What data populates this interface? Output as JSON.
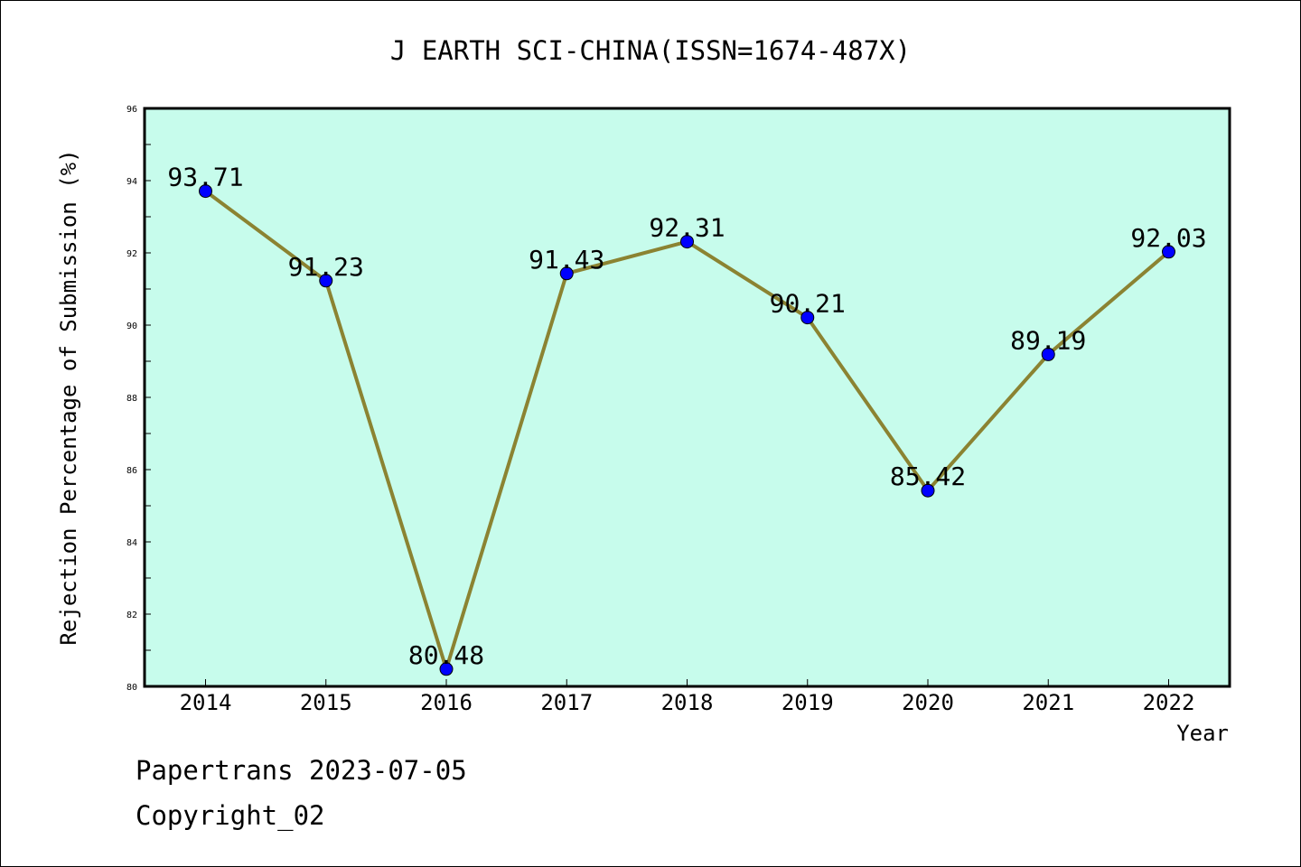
{
  "chart_data": {
    "type": "line",
    "title": "J EARTH SCI-CHINA(ISSN=1674-487X)",
    "xlabel": "Year",
    "ylabel": "Rejection Percentage of Submission (%)",
    "categories": [
      "2014",
      "2015",
      "2016",
      "2017",
      "2018",
      "2019",
      "2020",
      "2021",
      "2022"
    ],
    "series": [
      {
        "values": [
          93.71,
          91.23,
          80.48,
          91.43,
          92.31,
          90.21,
          85.42,
          89.19,
          92.03
        ]
      }
    ],
    "data_labels": [
      "93.71",
      "91.23",
      "80.48",
      "91.43",
      "92.31",
      "90.21",
      "85.42",
      "89.19",
      "92.03"
    ],
    "ylim": [
      80,
      96
    ],
    "yticks": [
      80,
      82,
      84,
      86,
      88,
      90,
      92,
      94,
      96
    ],
    "grid": false,
    "legend": "none",
    "colors": {
      "plot_background": "#c7fcec",
      "line": "#8b8332",
      "marker": "#0000ff"
    }
  },
  "footer": {
    "line1": "Papertrans 2023-07-05",
    "line2": "Copyright_02"
  }
}
